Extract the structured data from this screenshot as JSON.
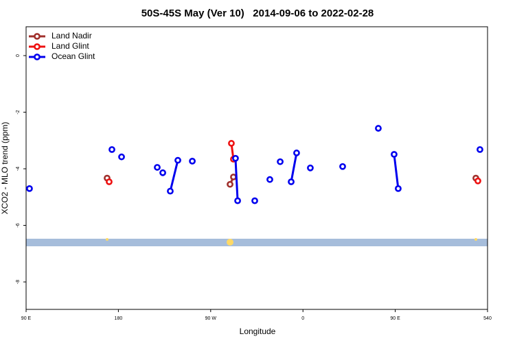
{
  "chart_data": {
    "type": "scatter",
    "title": "50S-45S May (Ver 10)   2014-09-06 to 2022-02-28",
    "x_label": "Longitude",
    "y_label": "XCO2 - MLO trend (ppm)",
    "xlim": [
      90,
      540
    ],
    "ylim": [
      -8.97,
      1.02
    ],
    "xticks": [
      {
        "value": 90,
        "label": "90 E"
      },
      180,
      {
        "value": 270,
        "label": "90 W"
      },
      {
        "value": 360,
        "label": "0"
      },
      {
        "value": 450,
        "label": "90 E"
      },
      540
    ],
    "yticks": [
      0,
      -2,
      -4,
      -6,
      -8
    ],
    "legend": "top-left",
    "series": [
      {
        "name": "Land Nadir",
        "color": "#a0302c",
        "x": [
          169.0,
          null,
          288.9,
          292.2,
          null,
          528.6
        ],
        "values": [
          -4.33,
          null,
          -4.55,
          -4.29,
          null,
          -4.33
        ]
      },
      {
        "name": "Land Glint",
        "color": "#ee1111",
        "x": [
          171.0,
          null,
          290.2,
          292.2,
          null,
          530.6
        ],
        "values": [
          -4.46,
          null,
          -3.1,
          -3.66,
          null,
          -4.43
        ]
      },
      {
        "name": "Ocean Glint",
        "color": "#0000ee",
        "x": [
          93.3,
          null,
          173.7,
          null,
          183.1,
          null,
          217.9,
          null,
          223.3,
          null,
          230.6,
          238.0,
          null,
          252.1,
          null,
          294.2,
          296.3,
          null,
          313.0,
          null,
          327.7,
          null,
          337.8,
          null,
          348.5,
          353.8,
          null,
          367.2,
          null,
          398.7,
          null,
          433.5,
          null,
          448.9,
          452.9,
          null,
          532.6
        ],
        "values": [
          -4.7,
          null,
          -3.32,
          null,
          -3.58,
          null,
          -3.95,
          null,
          -4.14,
          null,
          -4.79,
          -3.7,
          null,
          -3.73,
          null,
          -3.63,
          -5.13,
          null,
          -5.13,
          null,
          -4.38,
          null,
          -3.75,
          null,
          -4.46,
          -3.44,
          null,
          -3.97,
          null,
          -3.92,
          null,
          -2.57,
          null,
          -3.49,
          -4.7,
          null,
          -3.32
        ]
      }
    ]
  }
}
